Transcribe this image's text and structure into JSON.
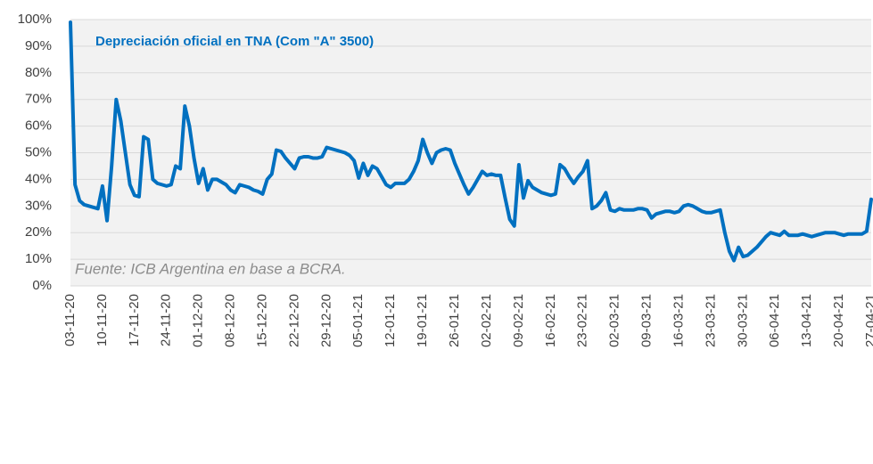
{
  "chart_data": {
    "type": "line",
    "title": "Depreciación oficial en TNA (Com \"A\" 3500)",
    "annotations": [
      "Fuente: ICB Argentina en base a BCRA."
    ],
    "categories": [
      "03-11-20",
      null,
      null,
      null,
      null,
      null,
      null,
      "10-11-20",
      null,
      null,
      null,
      null,
      null,
      null,
      "17-11-20",
      null,
      null,
      null,
      null,
      null,
      null,
      "24-11-20",
      null,
      null,
      null,
      null,
      null,
      null,
      "01-12-20",
      null,
      null,
      null,
      null,
      null,
      null,
      "08-12-20",
      null,
      null,
      null,
      null,
      null,
      null,
      "15-12-20",
      null,
      null,
      null,
      null,
      null,
      null,
      "22-12-20",
      null,
      null,
      null,
      null,
      null,
      null,
      "29-12-20",
      null,
      null,
      null,
      null,
      null,
      null,
      "05-01-21",
      null,
      null,
      null,
      null,
      null,
      null,
      "12-01-21",
      null,
      null,
      null,
      null,
      null,
      null,
      "19-01-21",
      null,
      null,
      null,
      null,
      null,
      null,
      "26-01-21",
      null,
      null,
      null,
      null,
      null,
      null,
      "02-02-21",
      null,
      null,
      null,
      null,
      null,
      null,
      "09-02-21",
      null,
      null,
      null,
      null,
      null,
      null,
      "16-02-21",
      null,
      null,
      null,
      null,
      null,
      null,
      "23-02-21",
      null,
      null,
      null,
      null,
      null,
      null,
      "02-03-21",
      null,
      null,
      null,
      null,
      null,
      null,
      "09-03-21",
      null,
      null,
      null,
      null,
      null,
      null,
      "16-03-21",
      null,
      null,
      null,
      null,
      null,
      null,
      "23-03-21",
      null,
      null,
      null,
      null,
      null,
      null,
      "30-03-21",
      null,
      null,
      null,
      null,
      null,
      null,
      "06-04-21",
      null,
      null,
      null,
      null,
      null,
      null,
      "13-04-21",
      null,
      null,
      null,
      null,
      null,
      null,
      "20-04-21",
      null,
      null,
      null,
      null,
      null,
      null,
      "27-04-21"
    ],
    "series": [
      {
        "name": "Depreciación oficial en TNA (Com \"A\" 3500)",
        "color": "#0070c0",
        "values": [
          99,
          38,
          32,
          30.5,
          30,
          29.5,
          29,
          37.5,
          24.5,
          45,
          70,
          62,
          50,
          38,
          34,
          33.5,
          56,
          55,
          40,
          38.5,
          38,
          37.5,
          38,
          45,
          44,
          67.5,
          60,
          48,
          38.5,
          44,
          36,
          40,
          40,
          39,
          38,
          36,
          35,
          38,
          37.5,
          37,
          36,
          35.5,
          34.5,
          40,
          42,
          51,
          50.5,
          48,
          46,
          44,
          48,
          48.5,
          48.5,
          48,
          48,
          48.5,
          52,
          51.5,
          51,
          50.5,
          50,
          49,
          47,
          40.5,
          46,
          41.5,
          45,
          44,
          41,
          38,
          37,
          38.5,
          38.5,
          38.5,
          40,
          43,
          47,
          55,
          50,
          46,
          50,
          51,
          51.5,
          51,
          46,
          42,
          38,
          34.5,
          37,
          40,
          43,
          41.5,
          42,
          41.5,
          41.5,
          33,
          25,
          22.5,
          45.5,
          33,
          39.5,
          37,
          36,
          35,
          34.5,
          34,
          34.5,
          45.5,
          44,
          41,
          38.5,
          41,
          43,
          47,
          29,
          30,
          32,
          35,
          28.5,
          28,
          29,
          28.5,
          28.5,
          28.5,
          29,
          29,
          28.5,
          25.5,
          27,
          27.5,
          28,
          28,
          27.5,
          28,
          30,
          30.5,
          30,
          29,
          28,
          27.5,
          27.5,
          28,
          28.5,
          20,
          13,
          9.5,
          14.5,
          11,
          11.5,
          13,
          14.5,
          16.5,
          18.5,
          20,
          19.5,
          19,
          20.5,
          19,
          19,
          19,
          19.5,
          19,
          18.5,
          19,
          19.5,
          20,
          20,
          20,
          19.5,
          19,
          19.5,
          19.5,
          19.5,
          19.5,
          20.5,
          32.5
        ]
      }
    ],
    "ylim": [
      0,
      100
    ],
    "yticks": [
      {
        "value": 0,
        "label": "0%"
      },
      {
        "value": 10,
        "label": "10%"
      },
      {
        "value": 20,
        "label": "20%"
      },
      {
        "value": 30,
        "label": "30%"
      },
      {
        "value": 40,
        "label": "40%"
      },
      {
        "value": 50,
        "label": "50%"
      },
      {
        "value": 60,
        "label": "60%"
      },
      {
        "value": 70,
        "label": "70%"
      },
      {
        "value": 80,
        "label": "80%"
      },
      {
        "value": 90,
        "label": "90%"
      },
      {
        "value": 100,
        "label": "100%"
      }
    ],
    "grid": true
  }
}
